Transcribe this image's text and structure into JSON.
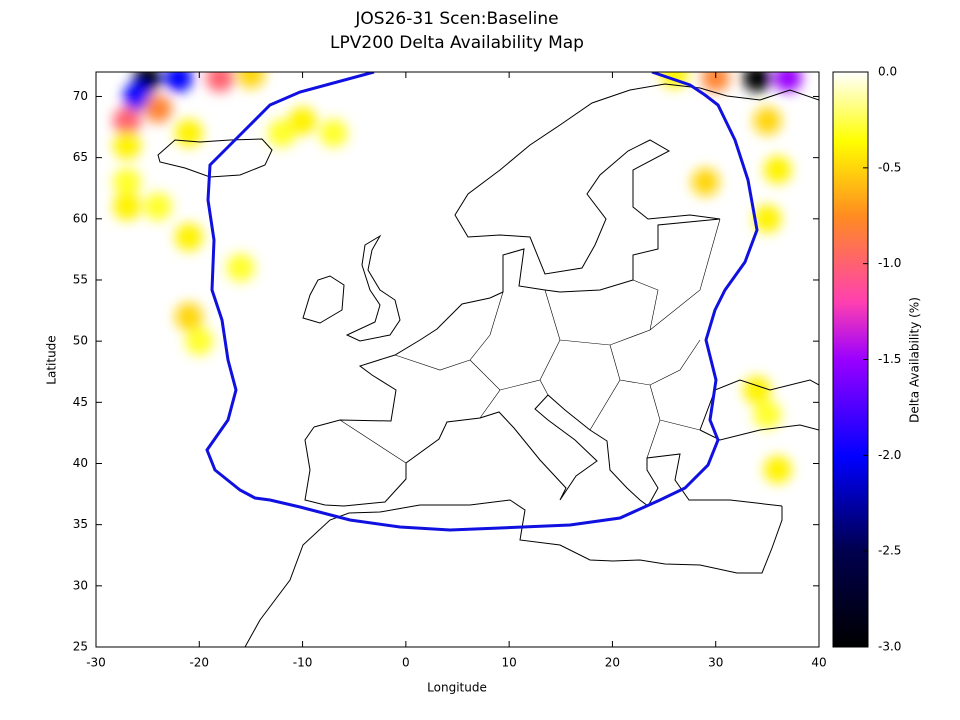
{
  "chart_data": {
    "type": "heatmap",
    "title": "JOS26-31 Scen:Baseline",
    "subtitle": "LPV200 Delta Availability Map",
    "x_label": "Longitude",
    "y_label": "Latitude",
    "colorbar_label": "Delta Availability (%)",
    "xlim": [
      -30,
      40
    ],
    "ylim": [
      25,
      72
    ],
    "xticks": [
      -30,
      -20,
      -10,
      0,
      10,
      20,
      30,
      40
    ],
    "yticks": [
      25,
      30,
      35,
      40,
      45,
      50,
      55,
      60,
      65,
      70
    ],
    "clim": [
      -3,
      0
    ],
    "cticks": [
      {
        "value": 0,
        "label": "0.0"
      },
      -0.5,
      {
        "value": -1,
        "label": "-1.0"
      },
      -1.5,
      {
        "value": -2,
        "label": "-2.0"
      },
      -2.5,
      {
        "value": -3,
        "label": "-3.0"
      }
    ],
    "contour_color": "#1010e0",
    "heat": {
      "lon": [
        -25,
        -22,
        -18,
        -15,
        -26,
        -24,
        -27,
        -27,
        -27,
        -27,
        -24,
        -21,
        -21,
        -21,
        -20,
        -16,
        -12,
        -10,
        -7,
        34,
        37,
        30,
        26,
        35,
        36,
        29,
        35,
        34,
        35,
        36
      ],
      "lat": [
        71.5,
        71.5,
        71.5,
        71.8,
        70,
        69,
        68,
        66,
        63,
        61,
        61,
        58.5,
        67,
        52,
        50,
        56,
        67,
        68,
        67,
        71.5,
        71.5,
        71.5,
        71.8,
        68,
        64,
        63,
        60,
        46,
        44,
        39.5
      ],
      "values": [
        -3,
        -2,
        -1,
        -0.5,
        -2,
        -0.8,
        -1,
        -0.4,
        -0.3,
        -0.4,
        -0.3,
        -0.4,
        -0.4,
        -0.5,
        -0.3,
        -0.3,
        -0.3,
        -0.4,
        -0.3,
        -3,
        -1.5,
        -0.8,
        -0.4,
        -0.5,
        -0.4,
        -0.5,
        -0.4,
        -0.4,
        -0.3,
        -0.4
      ]
    }
  }
}
